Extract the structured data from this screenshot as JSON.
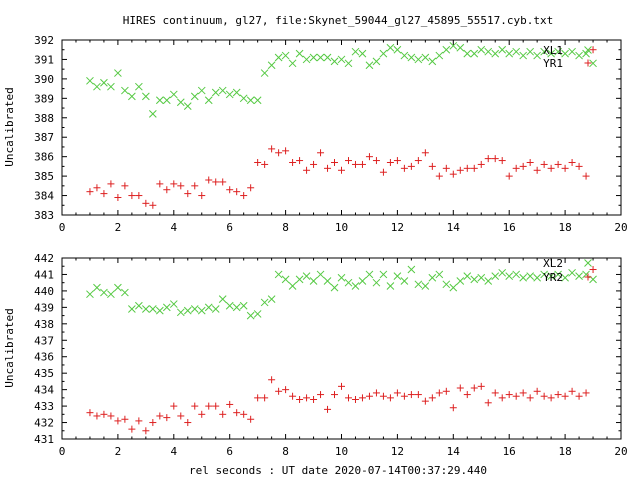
{
  "figure": {
    "title": "HIRES continuum, gl27, file:Skynet_59044_gl27_45895_55517.cyb.txt",
    "xlabel": "rel seconds : UT date 2020-07-14T00:37:29.440"
  },
  "colors": {
    "xl": "#55c943",
    "yr": "#dd2020",
    "axis": "#000000"
  },
  "chart_data": [
    {
      "type": "scatter",
      "ylabel": "Uncalibrated",
      "xlim": [
        0,
        20
      ],
      "ylim": [
        383,
        392
      ],
      "xticks": [
        "0",
        "2",
        "4",
        "6",
        "8",
        "10",
        "12",
        "14",
        "16",
        "18",
        "20"
      ],
      "yticks": [
        "383",
        "384",
        "385",
        "386",
        "387",
        "388",
        "389",
        "390",
        "391",
        "392"
      ],
      "legend_position": "top-right",
      "x": [
        1.0,
        1.25,
        1.5,
        1.75,
        2.0,
        2.25,
        2.5,
        2.75,
        3.0,
        3.25,
        3.5,
        3.75,
        4.0,
        4.25,
        4.5,
        4.75,
        5.0,
        5.25,
        5.5,
        5.75,
        6.0,
        6.25,
        6.5,
        6.75,
        7.0,
        7.25,
        7.5,
        7.75,
        8.0,
        8.25,
        8.5,
        8.75,
        9.0,
        9.25,
        9.5,
        9.75,
        10.0,
        10.25,
        10.5,
        10.75,
        11.0,
        11.25,
        11.5,
        11.75,
        12.0,
        12.25,
        12.5,
        12.75,
        13.0,
        13.25,
        13.5,
        13.75,
        14.0,
        14.25,
        14.5,
        14.75,
        15.0,
        15.25,
        15.5,
        15.75,
        16.0,
        16.25,
        16.5,
        16.75,
        17.0,
        17.25,
        17.5,
        17.75,
        18.0,
        18.25,
        18.5,
        18.75,
        19.0
      ],
      "series": [
        {
          "name": "XL1",
          "marker": "x",
          "color": "#55c943",
          "values": [
            389.9,
            389.6,
            389.8,
            389.6,
            390.3,
            389.4,
            389.1,
            389.6,
            389.1,
            388.2,
            388.9,
            388.9,
            389.2,
            388.8,
            388.6,
            389.1,
            389.4,
            388.9,
            389.3,
            389.4,
            389.2,
            389.3,
            389.0,
            388.9,
            388.9,
            390.3,
            390.7,
            391.1,
            391.2,
            390.8,
            391.3,
            391.0,
            391.1,
            391.1,
            391.1,
            390.9,
            391.0,
            390.8,
            391.4,
            391.3,
            390.7,
            390.9,
            391.3,
            391.6,
            391.5,
            391.2,
            391.1,
            391.0,
            391.1,
            390.9,
            391.2,
            391.5,
            391.7,
            391.6,
            391.3,
            391.3,
            391.5,
            391.4,
            391.3,
            391.5,
            391.3,
            391.4,
            391.2,
            391.4,
            391.2,
            391.4,
            391.3,
            391.4,
            391.3,
            391.4,
            391.2,
            391.3,
            390.8
          ]
        },
        {
          "name": "YR1",
          "marker": "+",
          "color": "#dd2020",
          "values": [
            384.2,
            384.4,
            384.1,
            384.6,
            383.9,
            384.5,
            384.0,
            384.0,
            383.6,
            383.5,
            384.6,
            384.3,
            384.6,
            384.5,
            384.1,
            384.5,
            384.0,
            384.8,
            384.7,
            384.7,
            384.3,
            384.2,
            384.0,
            384.4,
            385.7,
            385.6,
            386.4,
            386.2,
            386.3,
            385.7,
            385.8,
            385.3,
            385.6,
            386.2,
            385.4,
            385.7,
            385.3,
            385.8,
            385.6,
            385.6,
            386.0,
            385.8,
            385.2,
            385.7,
            385.8,
            385.4,
            385.5,
            385.8,
            386.2,
            385.5,
            385.0,
            385.4,
            385.1,
            385.3,
            385.4,
            385.4,
            385.6,
            385.9,
            385.9,
            385.8,
            385.0,
            385.4,
            385.5,
            385.7,
            385.3,
            385.6,
            385.4,
            385.6,
            385.4,
            385.7,
            385.5,
            385.0,
            391.5
          ]
        }
      ]
    },
    {
      "type": "scatter",
      "ylabel": "Uncalibrated",
      "xlim": [
        0,
        20
      ],
      "ylim": [
        431,
        442
      ],
      "xticks": [
        "0",
        "2",
        "4",
        "6",
        "8",
        "10",
        "12",
        "14",
        "16",
        "18",
        "20"
      ],
      "yticks": [
        "431",
        "432",
        "433",
        "434",
        "435",
        "436",
        "437",
        "438",
        "439",
        "440",
        "441",
        "442"
      ],
      "legend_position": "top-right",
      "x": [
        1.0,
        1.25,
        1.5,
        1.75,
        2.0,
        2.25,
        2.5,
        2.75,
        3.0,
        3.25,
        3.5,
        3.75,
        4.0,
        4.25,
        4.5,
        4.75,
        5.0,
        5.25,
        5.5,
        5.75,
        6.0,
        6.25,
        6.5,
        6.75,
        7.0,
        7.25,
        7.5,
        7.75,
        8.0,
        8.25,
        8.5,
        8.75,
        9.0,
        9.25,
        9.5,
        9.75,
        10.0,
        10.25,
        10.5,
        10.75,
        11.0,
        11.25,
        11.5,
        11.75,
        12.0,
        12.25,
        12.5,
        12.75,
        13.0,
        13.25,
        13.5,
        13.75,
        14.0,
        14.25,
        14.5,
        14.75,
        15.0,
        15.25,
        15.5,
        15.75,
        16.0,
        16.25,
        16.5,
        16.75,
        17.0,
        17.25,
        17.5,
        17.75,
        18.0,
        18.25,
        18.5,
        18.75,
        19.0
      ],
      "series": [
        {
          "name": "XL2",
          "marker": "x",
          "color": "#55c943",
          "values": [
            439.8,
            440.2,
            439.9,
            439.8,
            440.2,
            439.9,
            438.9,
            439.1,
            438.9,
            438.9,
            438.8,
            439.0,
            439.2,
            438.7,
            438.8,
            438.9,
            438.8,
            439.0,
            438.9,
            439.5,
            439.1,
            439.0,
            439.1,
            438.5,
            438.6,
            439.3,
            439.5,
            441.0,
            440.7,
            440.3,
            440.7,
            440.9,
            440.6,
            441.0,
            440.6,
            440.2,
            440.8,
            440.5,
            440.3,
            440.6,
            441.0,
            440.5,
            441.0,
            440.3,
            440.9,
            440.6,
            441.3,
            440.4,
            440.3,
            440.8,
            441.0,
            440.4,
            440.2,
            440.6,
            440.9,
            440.7,
            440.8,
            440.6,
            440.9,
            441.1,
            440.9,
            441.0,
            440.8,
            440.9,
            440.8,
            441.0,
            440.9,
            441.0,
            440.8,
            441.1,
            440.9,
            441.0,
            440.7
          ]
        },
        {
          "name": "YR2",
          "marker": "+",
          "color": "#dd2020",
          "values": [
            432.6,
            432.4,
            432.5,
            432.4,
            432.1,
            432.2,
            431.6,
            432.1,
            431.5,
            432.0,
            432.4,
            432.3,
            433.0,
            432.4,
            432.0,
            433.0,
            432.5,
            433.0,
            433.0,
            432.5,
            433.1,
            432.6,
            432.5,
            432.2,
            433.5,
            433.5,
            434.6,
            433.9,
            434.0,
            433.6,
            433.4,
            433.5,
            433.4,
            433.7,
            432.8,
            433.7,
            434.2,
            433.5,
            433.4,
            433.5,
            433.6,
            433.8,
            433.6,
            433.5,
            433.8,
            433.6,
            433.7,
            433.7,
            433.3,
            433.5,
            433.8,
            433.9,
            432.9,
            434.1,
            433.7,
            434.1,
            434.2,
            433.2,
            433.8,
            433.5,
            433.7,
            433.6,
            433.8,
            433.5,
            433.9,
            433.6,
            433.5,
            433.7,
            433.6,
            433.9,
            433.6,
            433.8,
            441.3
          ]
        }
      ]
    }
  ]
}
